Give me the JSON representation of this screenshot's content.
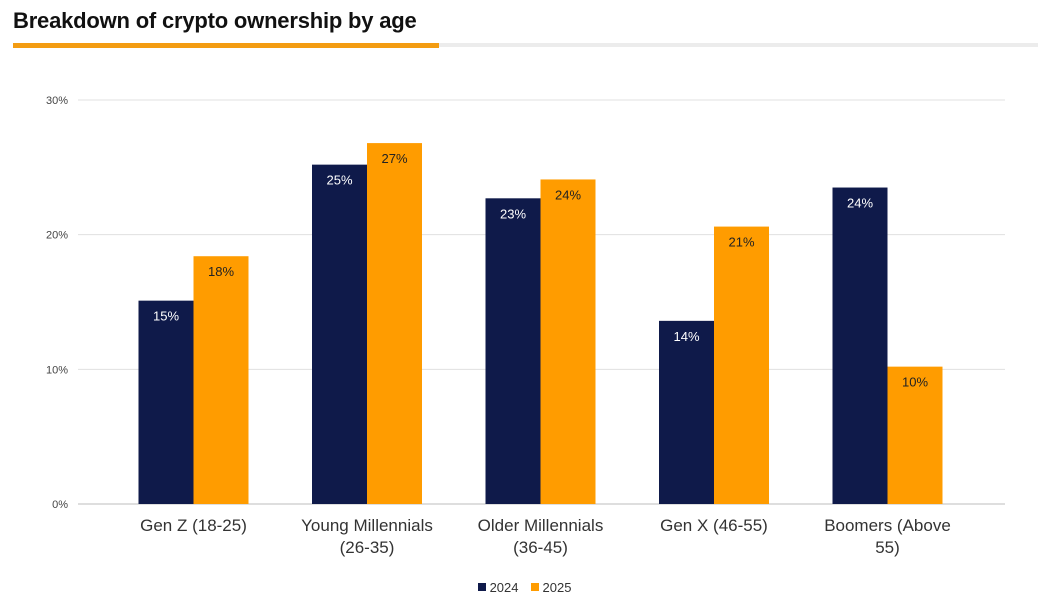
{
  "header": {
    "title": "Breakdown of crypto ownership by age"
  },
  "colors": {
    "accent": "#f39c12",
    "series_2024": "#0f1a4a",
    "series_2025": "#ff9c00",
    "grid": "#e0e0e0",
    "title_rule": "#ececec"
  },
  "chart_data": {
    "type": "bar",
    "title": "",
    "xlabel": "",
    "ylabel": "",
    "ylim": [
      0,
      30
    ],
    "yticks": [
      "0%",
      "10%",
      "20%",
      "30%"
    ],
    "ytick_values": [
      0,
      10,
      20,
      30
    ],
    "grid": true,
    "legend_position": "bottom-center",
    "categories": [
      [
        "Gen Z (18-25)"
      ],
      [
        "Young Millennials",
        "(26-35)"
      ],
      [
        "Older Millennials",
        "(36-45)"
      ],
      [
        "Gen X (46-55)"
      ],
      [
        "Boomers (Above",
        "55)"
      ]
    ],
    "series": [
      {
        "name": "2024",
        "values": [
          15.1,
          25.2,
          22.7,
          13.6,
          23.5
        ],
        "labels": [
          "15%",
          "25%",
          "23%",
          "14%",
          "24%"
        ]
      },
      {
        "name": "2025",
        "values": [
          18.4,
          26.8,
          24.1,
          20.6,
          10.2
        ],
        "labels": [
          "18%",
          "27%",
          "24%",
          "21%",
          "10%"
        ]
      }
    ]
  }
}
